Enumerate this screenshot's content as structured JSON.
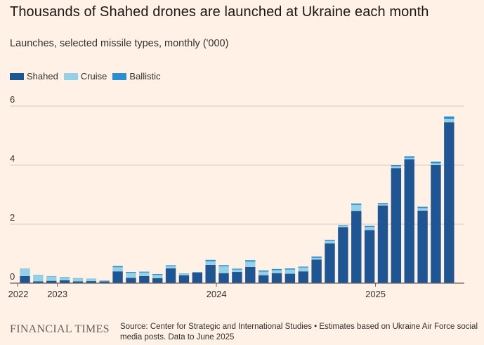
{
  "title": "Thousands of Shahed drones are launched at Ukraine each month",
  "subtitle": "Launches, selected missile types, monthly ('000)",
  "legend": [
    {
      "label": "Shahed",
      "color": "#1f5592"
    },
    {
      "label": "Cruise",
      "color": "#95d1e6"
    },
    {
      "label": "Ballistic",
      "color": "#2b8fcf"
    }
  ],
  "footer": {
    "logo": "FINANCIAL TIMES",
    "source": "Source: Center for Strategic and International Studies • Estimates based on Ukraine Air Force social media posts. Data to June 2025"
  },
  "chart_data": {
    "type": "bar",
    "stacked": true,
    "ylim": [
      0,
      6
    ],
    "yticks": [
      0,
      2,
      4,
      6
    ],
    "grid": true,
    "legend_position": "top-left",
    "x_tick_labels": [
      {
        "label": "2022",
        "index": 0
      },
      {
        "label": "2023",
        "index": 3
      },
      {
        "label": "2024",
        "index": 15
      },
      {
        "label": "2025",
        "index": 27
      }
    ],
    "categories": [
      "2022-10",
      "2022-11",
      "2022-12",
      "2023-01",
      "2023-02",
      "2023-03",
      "2023-04",
      "2023-05",
      "2023-06",
      "2023-07",
      "2023-08",
      "2023-09",
      "2023-10",
      "2023-11",
      "2023-12",
      "2024-01",
      "2024-02",
      "2024-03",
      "2024-04",
      "2024-05",
      "2024-06",
      "2024-07",
      "2024-08",
      "2024-09",
      "2024-10",
      "2024-11",
      "2024-12",
      "2025-01",
      "2025-02",
      "2025-03",
      "2025-04",
      "2025-05",
      "2025-06"
    ],
    "series": [
      {
        "name": "Shahed",
        "values": [
          0.24,
          0.06,
          0.08,
          0.1,
          0.06,
          0.07,
          0.06,
          0.4,
          0.18,
          0.24,
          0.17,
          0.5,
          0.27,
          0.36,
          0.62,
          0.34,
          0.38,
          0.55,
          0.27,
          0.34,
          0.32,
          0.4,
          0.8,
          1.35,
          1.9,
          2.45,
          1.8,
          2.63,
          3.9,
          4.2,
          2.46,
          4.0,
          5.45
        ]
      },
      {
        "name": "Cruise",
        "values": [
          0.24,
          0.21,
          0.15,
          0.08,
          0.1,
          0.07,
          0.02,
          0.14,
          0.17,
          0.12,
          0.11,
          0.08,
          0.05,
          0.01,
          0.12,
          0.23,
          0.08,
          0.18,
          0.12,
          0.1,
          0.14,
          0.13,
          0.06,
          0.08,
          0.05,
          0.2,
          0.1,
          0.05,
          0.06,
          0.05,
          0.08,
          0.06,
          0.12
        ]
      },
      {
        "name": "Ballistic",
        "values": [
          0.01,
          0.01,
          0.01,
          0.02,
          0.01,
          0.01,
          0.01,
          0.04,
          0.03,
          0.03,
          0.03,
          0.03,
          0.01,
          0.01,
          0.05,
          0.04,
          0.03,
          0.05,
          0.04,
          0.04,
          0.04,
          0.03,
          0.04,
          0.03,
          0.02,
          0.05,
          0.04,
          0.03,
          0.04,
          0.05,
          0.05,
          0.06,
          0.08
        ]
      }
    ]
  }
}
